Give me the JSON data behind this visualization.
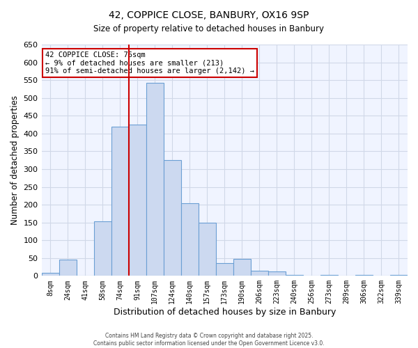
{
  "title": "42, COPPICE CLOSE, BANBURY, OX16 9SP",
  "subtitle": "Size of property relative to detached houses in Banbury",
  "xlabel": "Distribution of detached houses by size in Banbury",
  "ylabel": "Number of detached properties",
  "bin_labels": [
    "8sqm",
    "24sqm",
    "41sqm",
    "58sqm",
    "74sqm",
    "91sqm",
    "107sqm",
    "124sqm",
    "140sqm",
    "157sqm",
    "173sqm",
    "190sqm",
    "206sqm",
    "223sqm",
    "240sqm",
    "256sqm",
    "273sqm",
    "289sqm",
    "306sqm",
    "322sqm",
    "339sqm"
  ],
  "bar_values": [
    8,
    45,
    0,
    153,
    420,
    425,
    543,
    325,
    205,
    150,
    35,
    48,
    15,
    13,
    3,
    0,
    3,
    0,
    3,
    0,
    3
  ],
  "bar_color": "#ccd9f0",
  "bar_edge_color": "#6b9fd4",
  "vline_color": "#cc0000",
  "vline_x": 4.5,
  "annotation_text": "42 COPPICE CLOSE: 76sqm\n← 9% of detached houses are smaller (213)\n91% of semi-detached houses are larger (2,142) →",
  "annotation_box_color": "#ffffff",
  "annotation_box_edge": "#cc0000",
  "ylim": [
    0,
    650
  ],
  "yticks": [
    0,
    50,
    100,
    150,
    200,
    250,
    300,
    350,
    400,
    450,
    500,
    550,
    600,
    650
  ],
  "footer1": "Contains HM Land Registry data © Crown copyright and database right 2025.",
  "footer2": "Contains public sector information licensed under the Open Government Licence v3.0.",
  "bg_color": "#ffffff",
  "plot_bg_color": "#f0f4ff",
  "grid_color": "#d0d8e8"
}
